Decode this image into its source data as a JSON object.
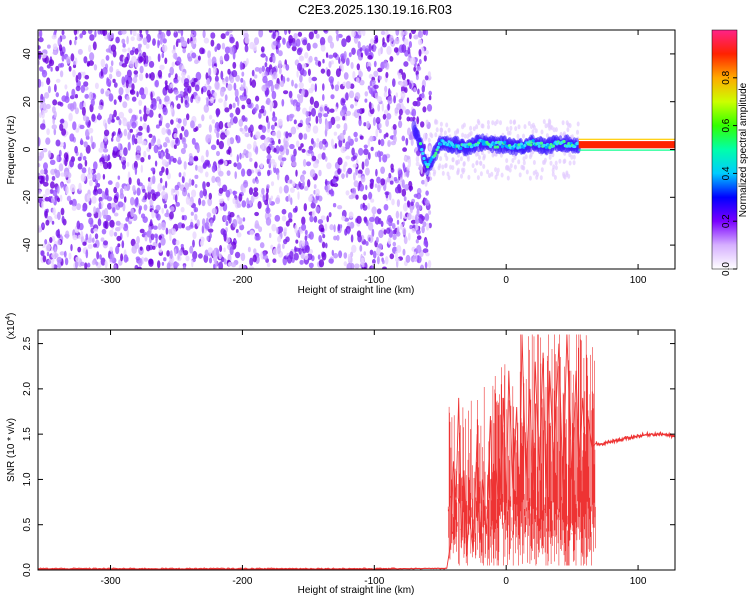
{
  "title": "C2E3.2025.130.19.16.R03",
  "chart_data": [
    {
      "type": "heatmap",
      "xlabel": "Height of straight line (km)",
      "ylabel": "Frequency (Hz)",
      "xlim": [
        -355,
        128
      ],
      "ylim": [
        -50,
        50
      ],
      "xticks": [
        -300,
        -200,
        -100,
        0,
        100
      ],
      "yticks": [
        -40,
        -20,
        0,
        20,
        40
      ],
      "xtick_labels": [
        "-300",
        "-200",
        "-100",
        "0",
        "100"
      ],
      "ytick_labels": [
        "-40",
        "-20",
        "0",
        "20",
        "40"
      ],
      "noise_region": [
        -355,
        -65
      ],
      "signal_track": {
        "x": [
          -70,
          -65,
          -60,
          -55,
          -50,
          -40,
          -30,
          -20,
          -10,
          0,
          10,
          20,
          30,
          40,
          50,
          55,
          128
        ],
        "y": [
          10,
          2,
          -8,
          -3,
          3,
          2,
          1,
          3,
          2,
          2,
          1,
          3,
          1,
          3,
          2,
          2,
          2
        ]
      },
      "colorbar": {
        "label": "Normalized spectral amplitude",
        "range": [
          0,
          1
        ],
        "ticks": [
          0.0,
          0.2,
          0.4,
          0.6,
          0.8
        ],
        "tick_labels": [
          "0.0",
          "0.2",
          "0.4",
          "0.6",
          "0.8"
        ]
      }
    },
    {
      "type": "line",
      "xlabel": "Height of straight line (km)",
      "ylabel": "SNR (10 * v/v)",
      "exponent_label": "(x10",
      "exponent_power": "4",
      "exponent_close": ")",
      "xlim": [
        -355,
        128
      ],
      "ylim": [
        0,
        2.65
      ],
      "xticks": [
        -300,
        -200,
        -100,
        0,
        100
      ],
      "yticks": [
        0.0,
        0.5,
        1.0,
        1.5,
        2.0,
        2.5
      ],
      "xtick_labels": [
        "-300",
        "-200",
        "-100",
        "0",
        "100"
      ],
      "ytick_labels": [
        "0.0",
        "0.5",
        "1.0",
        "1.5",
        "2.0",
        "2.5"
      ],
      "color": "#ee3333",
      "series": [
        {
          "x": [
            -355,
            -300,
            -200,
            -100,
            -45,
            -42,
            -40,
            -38,
            -36,
            -34,
            -32,
            -30,
            -28,
            -25,
            -22,
            -20,
            -18,
            -15,
            -12,
            -10,
            -8,
            -5,
            -2,
            0,
            2,
            5,
            8,
            10,
            12,
            15,
            18,
            20,
            22,
            25,
            28,
            30,
            33,
            36,
            40,
            43,
            46,
            50,
            53,
            55,
            58,
            60,
            62,
            65,
            68,
            70,
            80,
            90,
            100,
            110,
            120,
            128
          ],
          "y": [
            0.01,
            0.01,
            0.01,
            0.01,
            0.02,
            0.3,
            1.2,
            0.8,
            1.9,
            0.3,
            1.1,
            0.15,
            0.6,
            0.2,
            1.5,
            0.3,
            1.0,
            0.4,
            1.7,
            0.5,
            1.2,
            0.6,
            1.9,
            0.7,
            2.2,
            0.9,
            1.8,
            0.6,
            2.6,
            1.0,
            2.0,
            0.8,
            2.3,
            1.1,
            2.4,
            0.9,
            2.2,
            1.2,
            2.5,
            0.9,
            2.6,
            1.0,
            2.2,
            1.2,
            1.9,
            1.1,
            1.7,
            1.35,
            1.4,
            1.38,
            1.42,
            1.45,
            1.48,
            1.5,
            1.5,
            1.47
          ]
        }
      ]
    }
  ]
}
